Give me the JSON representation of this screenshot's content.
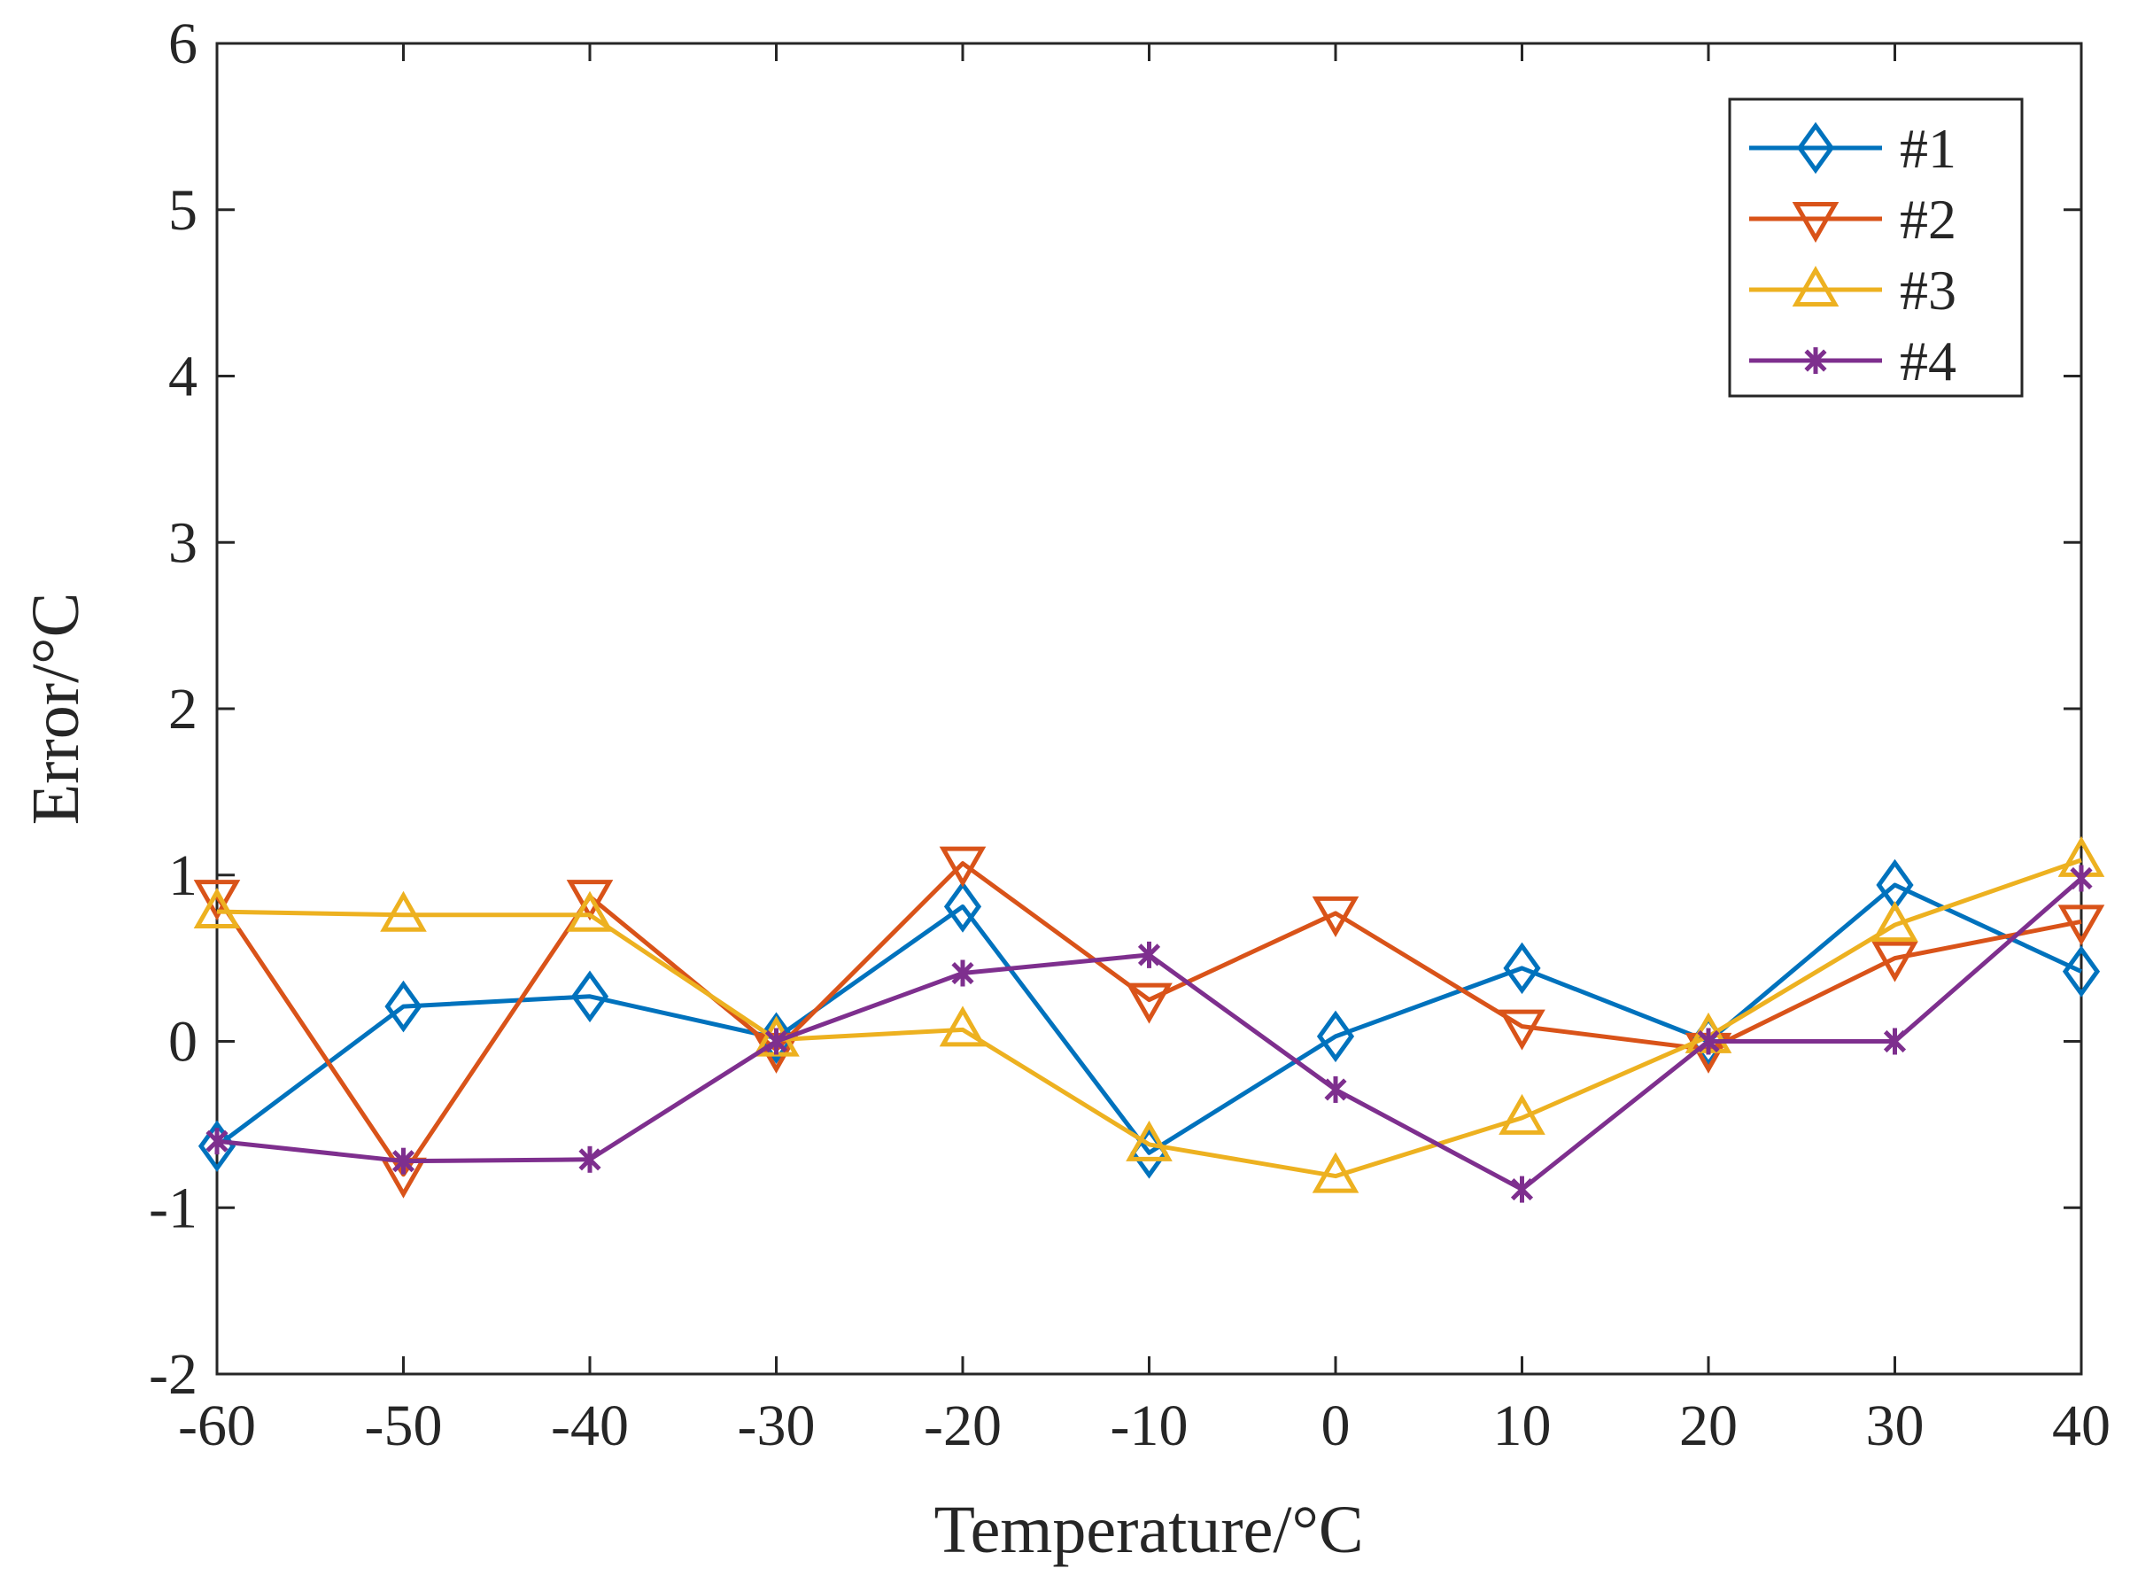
{
  "chart_data": {
    "type": "line",
    "title": "",
    "xlabel": "Temperature/°C",
    "ylabel": "Error/°C",
    "xlim": [
      -60,
      40
    ],
    "ylim": [
      -2,
      6
    ],
    "xticks": [
      -60,
      -50,
      -40,
      -30,
      -20,
      -10,
      0,
      10,
      20,
      30,
      40
    ],
    "yticks": [
      -2,
      -1,
      0,
      1,
      2,
      3,
      4,
      5,
      6
    ],
    "x": [
      -60,
      -50,
      -40,
      -30,
      -20,
      -10,
      0,
      10,
      20,
      30,
      40
    ],
    "grid": false,
    "legend_position": "top-right",
    "series": [
      {
        "name": "#1",
        "marker": "diamond",
        "color": "#0072BD",
        "values": [
          -0.63,
          0.21,
          0.27,
          0.02,
          0.81,
          -0.67,
          0.03,
          0.44,
          0.0,
          0.94,
          0.42
        ]
      },
      {
        "name": "#2",
        "marker": "triangle-down",
        "color": "#D95319",
        "values": [
          0.87,
          -0.8,
          0.87,
          -0.05,
          1.07,
          0.25,
          0.77,
          0.09,
          -0.05,
          0.5,
          0.72
        ]
      },
      {
        "name": "#3",
        "marker": "triangle-up",
        "color": "#EDB120",
        "values": [
          0.78,
          0.76,
          0.76,
          0.01,
          0.07,
          -0.62,
          -0.81,
          -0.46,
          0.03,
          0.7,
          1.09
        ]
      },
      {
        "name": "#4",
        "marker": "asterisk",
        "color": "#7E2F8E",
        "values": [
          -0.6,
          -0.72,
          -0.71,
          0.0,
          0.41,
          0.52,
          -0.29,
          -0.89,
          0.0,
          0.0,
          0.98
        ]
      }
    ]
  }
}
